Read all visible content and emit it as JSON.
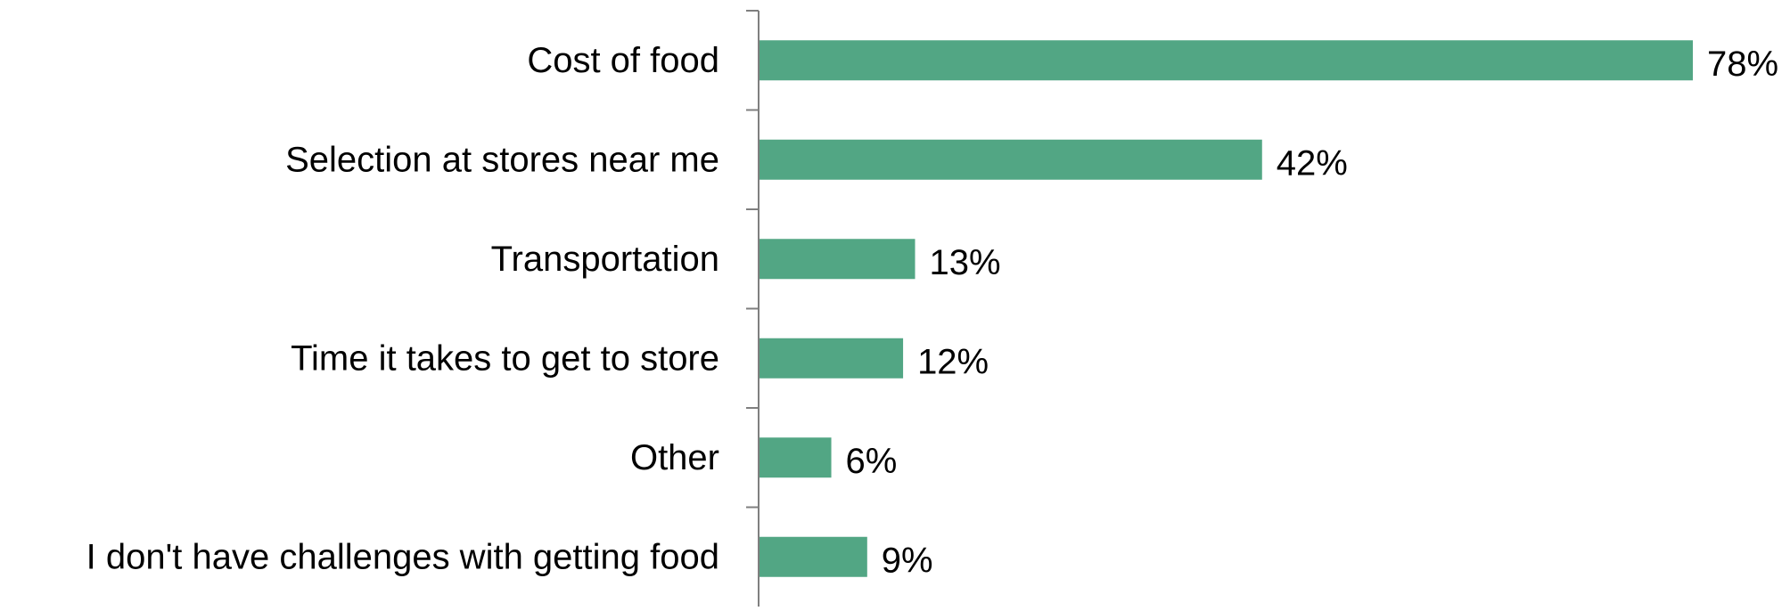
{
  "chart_data": {
    "type": "bar",
    "orientation": "horizontal",
    "categories": [
      "Cost of food",
      "Selection at stores near me",
      "Transportation",
      "Time it takes to get to store",
      "Other",
      "I don't have challenges with getting food"
    ],
    "values": [
      78,
      42,
      13,
      12,
      6,
      9
    ],
    "value_labels": [
      "78%",
      "42%",
      "13%",
      "12%",
      "6%",
      "9%"
    ],
    "unit": "%",
    "xlim": [
      0,
      78
    ],
    "grid": false,
    "legend": "none",
    "title": "",
    "xlabel": "",
    "ylabel": ""
  },
  "colors": {
    "bar": "#52a684",
    "axis": "#7f7f7f",
    "text": "#000000",
    "background": "#ffffff"
  }
}
